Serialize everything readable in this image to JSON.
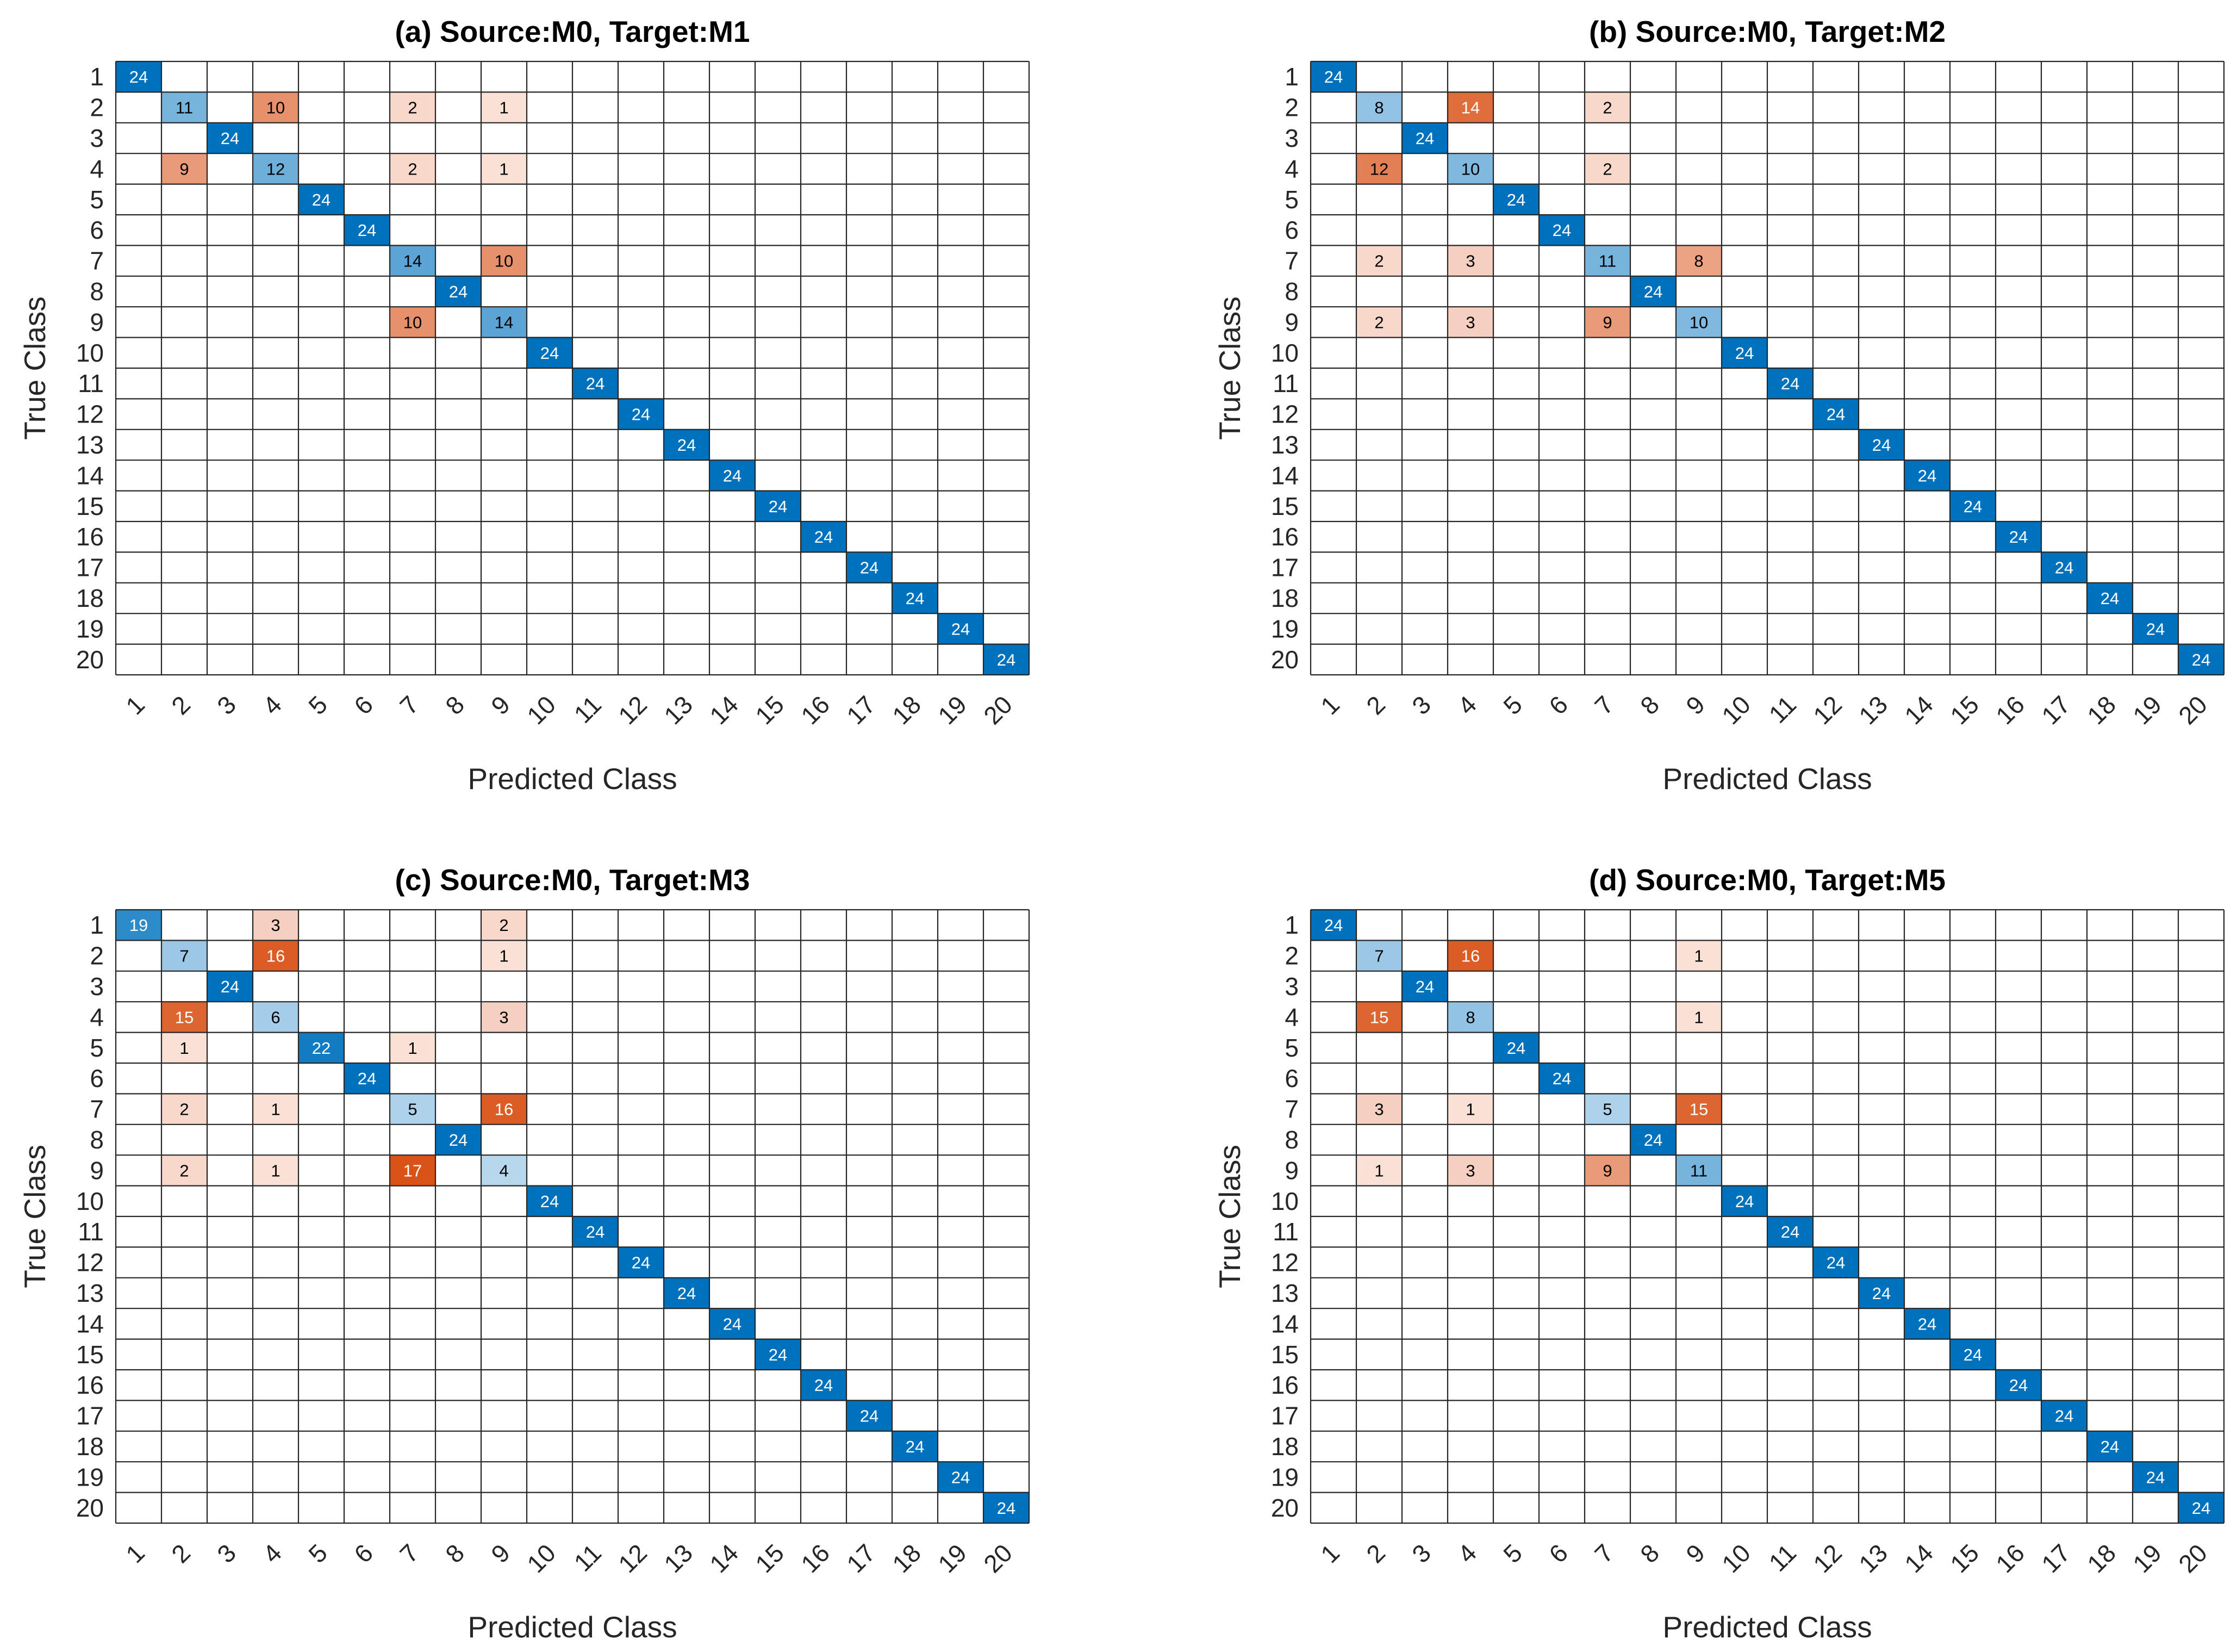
{
  "chart_data": [
    {
      "type": "heatmap",
      "title": "(a) Source:M0, Target:M1",
      "xlabel": "Predicted Class",
      "ylabel": "True Class",
      "classes": [
        "1",
        "2",
        "3",
        "4",
        "5",
        "6",
        "7",
        "8",
        "9",
        "10",
        "11",
        "12",
        "13",
        "14",
        "15",
        "16",
        "17",
        "18",
        "19",
        "20"
      ],
      "off_diagonal": [
        [
          2,
          4,
          10
        ],
        [
          2,
          7,
          2
        ],
        [
          2,
          9,
          1
        ],
        [
          4,
          2,
          9
        ],
        [
          4,
          7,
          2
        ],
        [
          4,
          9,
          1
        ],
        [
          7,
          9,
          10
        ],
        [
          9,
          7,
          10
        ]
      ],
      "diagonal": [
        24,
        11,
        24,
        12,
        24,
        24,
        14,
        24,
        14,
        24,
        24,
        24,
        24,
        24,
        24,
        24,
        24,
        24,
        24,
        24
      ]
    },
    {
      "type": "heatmap",
      "title": "(b) Source:M0, Target:M2",
      "xlabel": "Predicted Class",
      "ylabel": "True Class",
      "classes": [
        "1",
        "2",
        "3",
        "4",
        "5",
        "6",
        "7",
        "8",
        "9",
        "10",
        "11",
        "12",
        "13",
        "14",
        "15",
        "16",
        "17",
        "18",
        "19",
        "20"
      ],
      "off_diagonal": [
        [
          2,
          4,
          14
        ],
        [
          2,
          7,
          2
        ],
        [
          4,
          2,
          12
        ],
        [
          4,
          7,
          2
        ],
        [
          7,
          2,
          2
        ],
        [
          7,
          4,
          3
        ],
        [
          7,
          9,
          8
        ],
        [
          9,
          2,
          2
        ],
        [
          9,
          4,
          3
        ],
        [
          9,
          7,
          9
        ]
      ],
      "diagonal": [
        24,
        8,
        24,
        10,
        24,
        24,
        11,
        24,
        10,
        24,
        24,
        24,
        24,
        24,
        24,
        24,
        24,
        24,
        24,
        24
      ]
    },
    {
      "type": "heatmap",
      "title": "(c) Source:M0, Target:M3",
      "xlabel": "Predicted Class",
      "ylabel": "True Class",
      "classes": [
        "1",
        "2",
        "3",
        "4",
        "5",
        "6",
        "7",
        "8",
        "9",
        "10",
        "11",
        "12",
        "13",
        "14",
        "15",
        "16",
        "17",
        "18",
        "19",
        "20"
      ],
      "off_diagonal": [
        [
          1,
          4,
          3
        ],
        [
          1,
          9,
          2
        ],
        [
          2,
          4,
          16
        ],
        [
          2,
          9,
          1
        ],
        [
          4,
          2,
          15
        ],
        [
          4,
          9,
          3
        ],
        [
          5,
          2,
          1
        ],
        [
          5,
          7,
          1
        ],
        [
          7,
          2,
          2
        ],
        [
          7,
          4,
          1
        ],
        [
          7,
          9,
          16
        ],
        [
          9,
          2,
          2
        ],
        [
          9,
          4,
          1
        ],
        [
          9,
          7,
          17
        ]
      ],
      "diagonal": [
        19,
        7,
        24,
        6,
        22,
        24,
        5,
        24,
        4,
        24,
        24,
        24,
        24,
        24,
        24,
        24,
        24,
        24,
        24,
        24
      ]
    },
    {
      "type": "heatmap",
      "title": "(d) Source:M0, Target:M5",
      "xlabel": "Predicted Class",
      "ylabel": "True Class",
      "classes": [
        "1",
        "2",
        "3",
        "4",
        "5",
        "6",
        "7",
        "8",
        "9",
        "10",
        "11",
        "12",
        "13",
        "14",
        "15",
        "16",
        "17",
        "18",
        "19",
        "20"
      ],
      "off_diagonal": [
        [
          2,
          4,
          16
        ],
        [
          2,
          9,
          1
        ],
        [
          4,
          2,
          15
        ],
        [
          4,
          9,
          1
        ],
        [
          7,
          2,
          3
        ],
        [
          7,
          4,
          1
        ],
        [
          7,
          9,
          15
        ],
        [
          9,
          2,
          1
        ],
        [
          9,
          4,
          3
        ],
        [
          9,
          7,
          9
        ]
      ],
      "diagonal": [
        24,
        7,
        24,
        8,
        24,
        24,
        5,
        24,
        11,
        24,
        24,
        24,
        24,
        24,
        24,
        24,
        24,
        24,
        24,
        24
      ]
    }
  ],
  "colors": {
    "diag_strong": "#0072BD",
    "diag_light": "#DCEBF7",
    "off_strong": "#D95319",
    "off_light": "#FBEAE2",
    "grid": "#262626",
    "text": "#262626"
  }
}
